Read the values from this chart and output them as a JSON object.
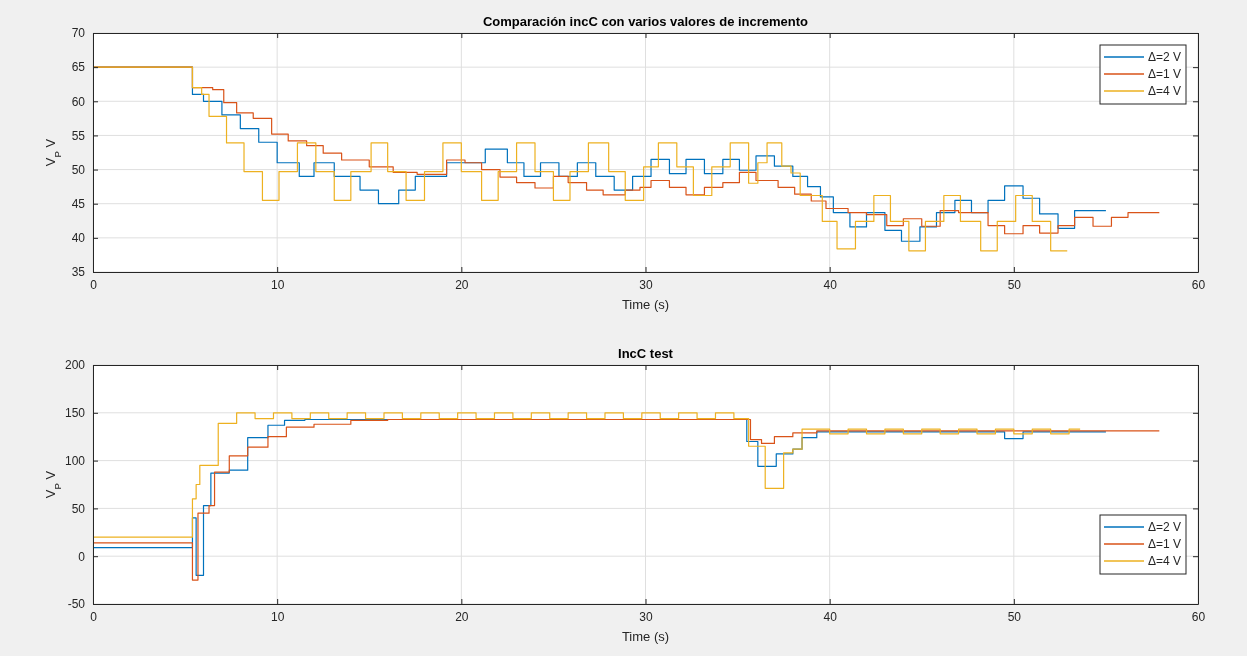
{
  "chart_data": [
    {
      "type": "step",
      "title": "Comparación incC con varios valores de incremento",
      "xlabel": "Time (s)",
      "ylabel": "V$_{P}$ V",
      "xlim": [
        0,
        60
      ],
      "xticks": [
        0,
        10,
        20,
        30,
        40,
        50,
        60
      ],
      "ylim": [
        35,
        70
      ],
      "yticks": [
        35,
        40,
        45,
        50,
        55,
        60,
        65,
        70
      ],
      "grid": true,
      "legend": "top right",
      "series": [
        {
          "name": "Δ=2 V",
          "color": "#0072bd",
          "x": [
            0,
            5.4,
            6,
            7,
            8,
            9,
            10,
            11.2,
            12,
            13.1,
            14.5,
            15.5,
            16.6,
            17.5,
            19.2,
            21.3,
            22.5,
            23.4,
            24.3,
            25.3,
            26.3,
            27.3,
            28.3,
            29.3,
            30.3,
            31.3,
            32.2,
            33.2,
            34.2,
            35.1,
            36,
            37,
            38,
            38.8,
            39.5,
            40.2,
            41.1,
            42,
            43,
            43.9,
            44.9,
            45.8,
            46.8,
            47.7,
            48.6,
            49.5,
            50.5,
            51.4,
            52.4,
            53.3,
            54.3,
            55
          ],
          "values": [
            65,
            61,
            60,
            58,
            56,
            54,
            51,
            49,
            51,
            49,
            47,
            45,
            47,
            49,
            51,
            53,
            51,
            49,
            51,
            49,
            51,
            49,
            47,
            49,
            51.5,
            49.4,
            51.5,
            49.4,
            51.5,
            49.9,
            52,
            50.5,
            49,
            47.5,
            46,
            43.7,
            41.6,
            43.7,
            41.1,
            39.5,
            41.6,
            43.7,
            45.5,
            43.7,
            45.5,
            47.6,
            45.8,
            43.5,
            41.4,
            44,
            44,
            44
          ]
        },
        {
          "name": "Δ=1 V",
          "color": "#d95319",
          "x": [
            0,
            5.4,
            6.5,
            7.1,
            7.8,
            8.7,
            9.7,
            10.6,
            11.6,
            12.5,
            13.5,
            15,
            16.3,
            17.6,
            19.2,
            20.2,
            21.1,
            22.1,
            23,
            24,
            25,
            25.8,
            26.8,
            27.7,
            28.9,
            29.7,
            30.3,
            31.3,
            32.2,
            33.2,
            34.2,
            35.1,
            36,
            37.2,
            38.1,
            39,
            39.8,
            41,
            42,
            43.1,
            44,
            45,
            46,
            47,
            48.6,
            49.5,
            50.5,
            51.4,
            52.4,
            53.3,
            54.3,
            55.3,
            56.2,
            57.9
          ],
          "values": [
            65,
            62,
            61.7,
            59.8,
            58.3,
            57.5,
            55.2,
            54.2,
            53.5,
            52.4,
            51.4,
            50.4,
            49.6,
            49.3,
            51.4,
            51,
            50,
            48.9,
            48.1,
            47.3,
            49,
            48.1,
            47,
            46.3,
            47,
            47.4,
            48.4,
            47.4,
            46.3,
            47.4,
            48.1,
            49.6,
            48.4,
            47.4,
            46.4,
            45.4,
            44.3,
            43.7,
            43.4,
            41.8,
            42.8,
            41.7,
            44,
            43.7,
            41.8,
            40.6,
            41.8,
            40.7,
            41.8,
            43,
            41.7,
            43,
            43.7,
            43.7
          ]
        },
        {
          "name": "Δ=4 V",
          "color": "#edb120",
          "x": [
            0,
            5.4,
            5.9,
            6.3,
            7.25,
            8.2,
            9.2,
            10.1,
            11.1,
            12.1,
            13.1,
            14,
            15.1,
            16,
            17,
            18,
            19,
            20,
            21.1,
            22,
            23,
            24,
            25,
            25.9,
            26.9,
            28,
            28.9,
            29.9,
            30.7,
            31.7,
            32.6,
            33.6,
            34.6,
            35.6,
            36.1,
            36.6,
            37.4,
            37.9,
            38.4,
            39.6,
            40.4,
            41.4,
            42.4,
            43.3,
            44.3,
            45.2,
            46.2,
            47.1,
            48.2,
            49.1,
            50.1,
            51,
            52,
            52.9
          ],
          "values": [
            65,
            62,
            61,
            57.8,
            53.9,
            49.7,
            45.5,
            49.7,
            53.9,
            49.7,
            45.5,
            49.7,
            53.9,
            49.7,
            45.5,
            49.7,
            53.9,
            49.7,
            45.5,
            49.7,
            53.9,
            49.7,
            45.5,
            49.7,
            53.9,
            49.7,
            45.5,
            50.4,
            53.9,
            50.4,
            46.2,
            50.4,
            53.9,
            48,
            51,
            53.9,
            50.5,
            49.5,
            46.2,
            42.4,
            38.4,
            42.4,
            46.2,
            42.4,
            38.1,
            42.4,
            46.2,
            42.4,
            38.1,
            42.4,
            46.2,
            42.4,
            38.1,
            38.1
          ]
        }
      ]
    },
    {
      "type": "step",
      "title": "IncC test",
      "xlabel": "Time (s)",
      "ylabel": "V$_{P}$ V",
      "xlim": [
        0,
        60
      ],
      "xticks": [
        0,
        10,
        20,
        30,
        40,
        50,
        60
      ],
      "ylim": [
        -50,
        200
      ],
      "yticks": [
        -50,
        0,
        50,
        100,
        150,
        200
      ],
      "grid": true,
      "legend": "bottom right",
      "series": [
        {
          "name": "Δ=2 V",
          "color": "#0072bd",
          "x": [
            0,
            5.4,
            5.6,
            6,
            6.4,
            7.4,
            8.4,
            9.5,
            10.4,
            11.5,
            35.5,
            36.1,
            37.1,
            38,
            38.5,
            39.3,
            49.5,
            50.5,
            55
          ],
          "values": [
            9,
            40,
            -20,
            53,
            87,
            90,
            124,
            137,
            142,
            143,
            120,
            94,
            107,
            112,
            124,
            130,
            123,
            130,
            130
          ]
        },
        {
          "name": "Δ=1 V",
          "color": "#d95319",
          "x": [
            0,
            5.4,
            5.7,
            6.3,
            6.6,
            7.4,
            8.4,
            9.5,
            10.5,
            12,
            14,
            16,
            35.5,
            35.7,
            36.3,
            37,
            38,
            39.3,
            57.9
          ],
          "values": [
            14,
            -25,
            45,
            53,
            88,
            105,
            114,
            125,
            135,
            138,
            142,
            143,
            143,
            122,
            118,
            125,
            129,
            131,
            131
          ]
        },
        {
          "name": "Δ=4 V",
          "color": "#edb120",
          "x": [
            0,
            5.4,
            5.6,
            5.8,
            6.8,
            7.8,
            8.8,
            9.8,
            10.8,
            11.8,
            12.8,
            13.8,
            14.8,
            15.8,
            16.8,
            17.8,
            18.8,
            19.8,
            20.8,
            21.8,
            22.8,
            23.8,
            24.8,
            25.8,
            26.8,
            27.8,
            28.8,
            29.8,
            30.8,
            31.8,
            32.8,
            33.8,
            34.8,
            35.6,
            36.5,
            37.5,
            38,
            38.5,
            40,
            41,
            42,
            43,
            44,
            45,
            46,
            47,
            48,
            49,
            50,
            51,
            52,
            53,
            53.6
          ],
          "values": [
            20,
            60,
            75,
            95,
            139,
            150,
            144,
            150,
            144,
            150,
            144,
            150,
            144,
            150,
            144,
            150,
            144,
            150,
            144,
            150,
            144,
            150,
            144,
            150,
            144,
            150,
            144,
            150,
            144,
            150,
            144,
            150,
            144,
            115,
            71,
            108,
            112,
            133,
            128,
            133,
            128,
            133,
            128,
            133,
            128,
            133,
            128,
            133,
            128,
            133,
            128,
            133,
            133
          ]
        }
      ]
    }
  ]
}
